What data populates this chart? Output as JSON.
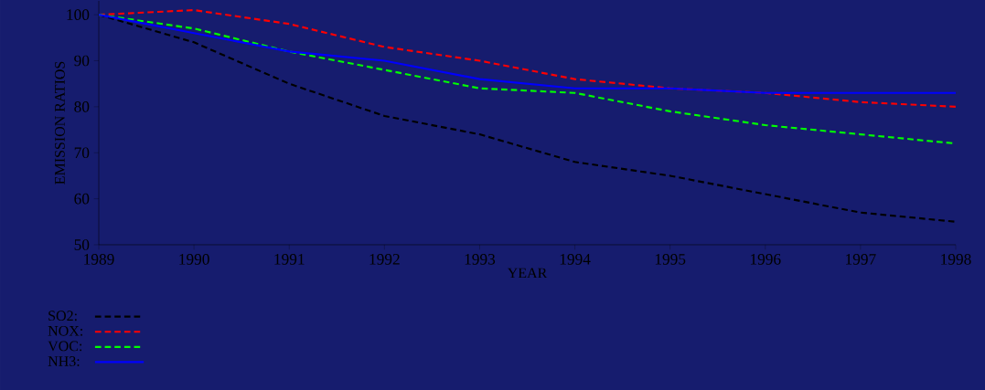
{
  "chart_data": {
    "type": "line",
    "xlabel": "YEAR",
    "ylabel": "EMISSION RATIOS",
    "x": [
      1989,
      1990,
      1991,
      1992,
      1993,
      1994,
      1995,
      1996,
      1997,
      1998
    ],
    "series": [
      {
        "name": "SO2:",
        "color": "#000000",
        "line_style": "dashed",
        "values": [
          100,
          94,
          85,
          78,
          74,
          68,
          65,
          61,
          57,
          55
        ]
      },
      {
        "name": "NOX:",
        "color": "#ff0000",
        "line_style": "dashed",
        "values": [
          100,
          101,
          98,
          93,
          90,
          86,
          84,
          83,
          81,
          80
        ]
      },
      {
        "name": "VOC:",
        "color": "#00ff00",
        "line_style": "dashed",
        "values": [
          100,
          97,
          92,
          88,
          84,
          83,
          79,
          76,
          74,
          72
        ]
      },
      {
        "name": "NH3:",
        "color": "#0000ff",
        "line_style": "solid",
        "values": [
          100,
          96,
          92,
          90,
          86,
          84,
          84,
          83,
          83,
          83
        ]
      }
    ],
    "xlim": [
      1989,
      1998
    ],
    "ylim": [
      50,
      103
    ],
    "xticks": [
      1989,
      1990,
      1991,
      1992,
      1993,
      1994,
      1995,
      1996,
      1997,
      1998
    ],
    "yticks": [
      50,
      60,
      70,
      80,
      90,
      100
    ],
    "legend": "bottom left"
  }
}
